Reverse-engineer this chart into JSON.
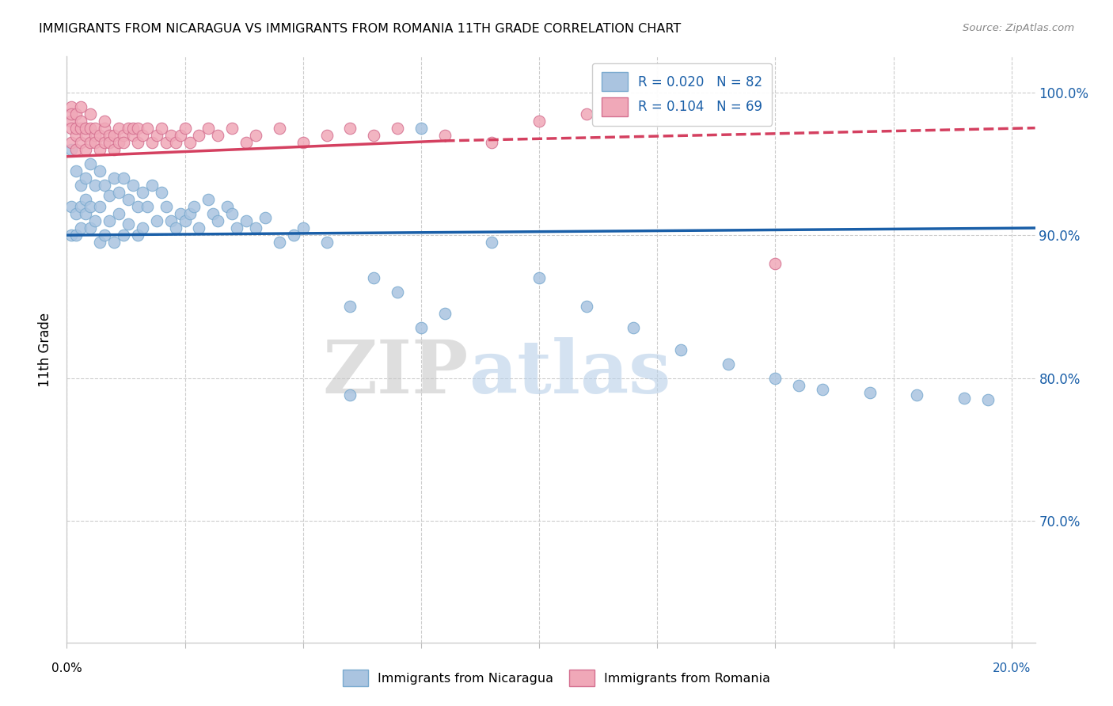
{
  "title": "IMMIGRANTS FROM NICARAGUA VS IMMIGRANTS FROM ROMANIA 11TH GRADE CORRELATION CHART",
  "source": "Source: ZipAtlas.com",
  "ylabel": "11th Grade",
  "watermark_zip": "ZIP",
  "watermark_atlas": "atlas",
  "R_nicaragua": 0.02,
  "N_nicaragua": 82,
  "R_romania": 0.104,
  "N_romania": 69,
  "nic_color": "#aac4e0",
  "nic_edge": "#7aaacf",
  "nic_line_color": "#1a5fa8",
  "rom_color": "#f0a8b8",
  "rom_edge": "#d47090",
  "rom_line_color": "#d44060",
  "xmin": 0.0,
  "xmax": 0.205,
  "ymin": 0.615,
  "ymax": 1.025,
  "yticks": [
    0.7,
    0.8,
    0.9,
    1.0
  ],
  "ytick_labels": [
    "70.0%",
    "80.0%",
    "90.0%",
    "100.0%"
  ],
  "xtick_labels_left": "0.0%",
  "xtick_labels_right": "20.0%",
  "nicaragua_x": [
    0.001,
    0.001,
    0.001,
    0.002,
    0.002,
    0.002,
    0.003,
    0.003,
    0.003,
    0.004,
    0.004,
    0.004,
    0.005,
    0.005,
    0.005,
    0.006,
    0.006,
    0.007,
    0.007,
    0.007,
    0.008,
    0.008,
    0.009,
    0.009,
    0.01,
    0.01,
    0.011,
    0.011,
    0.012,
    0.012,
    0.013,
    0.013,
    0.014,
    0.015,
    0.015,
    0.016,
    0.016,
    0.017,
    0.018,
    0.019,
    0.02,
    0.021,
    0.022,
    0.023,
    0.024,
    0.025,
    0.026,
    0.027,
    0.028,
    0.03,
    0.031,
    0.032,
    0.034,
    0.035,
    0.036,
    0.038,
    0.04,
    0.042,
    0.045,
    0.048,
    0.05,
    0.055,
    0.06,
    0.065,
    0.07,
    0.075,
    0.08,
    0.09,
    0.1,
    0.11,
    0.12,
    0.13,
    0.14,
    0.15,
    0.155,
    0.16,
    0.17,
    0.18,
    0.19,
    0.195,
    0.06,
    0.075
  ],
  "nicaragua_y": [
    0.96,
    0.9,
    0.92,
    0.945,
    0.9,
    0.915,
    0.935,
    0.905,
    0.92,
    0.94,
    0.915,
    0.925,
    0.95,
    0.905,
    0.92,
    0.91,
    0.935,
    0.945,
    0.895,
    0.92,
    0.9,
    0.935,
    0.91,
    0.928,
    0.94,
    0.895,
    0.915,
    0.93,
    0.9,
    0.94,
    0.908,
    0.925,
    0.935,
    0.92,
    0.9,
    0.905,
    0.93,
    0.92,
    0.935,
    0.91,
    0.93,
    0.92,
    0.91,
    0.905,
    0.915,
    0.91,
    0.915,
    0.92,
    0.905,
    0.925,
    0.915,
    0.91,
    0.92,
    0.915,
    0.905,
    0.91,
    0.905,
    0.912,
    0.895,
    0.9,
    0.905,
    0.895,
    0.85,
    0.87,
    0.86,
    0.835,
    0.845,
    0.895,
    0.87,
    0.85,
    0.835,
    0.82,
    0.81,
    0.8,
    0.795,
    0.792,
    0.79,
    0.788,
    0.786,
    0.785,
    0.788,
    0.975
  ],
  "romania_x": [
    0.001,
    0.001,
    0.001,
    0.001,
    0.001,
    0.002,
    0.002,
    0.002,
    0.002,
    0.003,
    0.003,
    0.003,
    0.003,
    0.004,
    0.004,
    0.004,
    0.005,
    0.005,
    0.005,
    0.006,
    0.006,
    0.006,
    0.007,
    0.007,
    0.008,
    0.008,
    0.008,
    0.009,
    0.009,
    0.01,
    0.01,
    0.011,
    0.011,
    0.012,
    0.012,
    0.013,
    0.014,
    0.014,
    0.015,
    0.015,
    0.016,
    0.017,
    0.018,
    0.019,
    0.02,
    0.021,
    0.022,
    0.023,
    0.024,
    0.025,
    0.026,
    0.028,
    0.03,
    0.032,
    0.035,
    0.038,
    0.04,
    0.045,
    0.05,
    0.055,
    0.06,
    0.065,
    0.07,
    0.08,
    0.09,
    0.1,
    0.11,
    0.13,
    0.15
  ],
  "romania_y": [
    0.98,
    0.975,
    0.99,
    0.965,
    0.985,
    0.97,
    0.975,
    0.985,
    0.96,
    0.975,
    0.965,
    0.98,
    0.99,
    0.97,
    0.975,
    0.96,
    0.965,
    0.975,
    0.985,
    0.97,
    0.965,
    0.975,
    0.96,
    0.97,
    0.965,
    0.975,
    0.98,
    0.97,
    0.965,
    0.96,
    0.97,
    0.965,
    0.975,
    0.97,
    0.965,
    0.975,
    0.97,
    0.975,
    0.965,
    0.975,
    0.97,
    0.975,
    0.965,
    0.97,
    0.975,
    0.965,
    0.97,
    0.965,
    0.97,
    0.975,
    0.965,
    0.97,
    0.975,
    0.97,
    0.975,
    0.965,
    0.97,
    0.975,
    0.965,
    0.97,
    0.975,
    0.97,
    0.975,
    0.97,
    0.965,
    0.98,
    0.985,
    0.99,
    0.88
  ]
}
